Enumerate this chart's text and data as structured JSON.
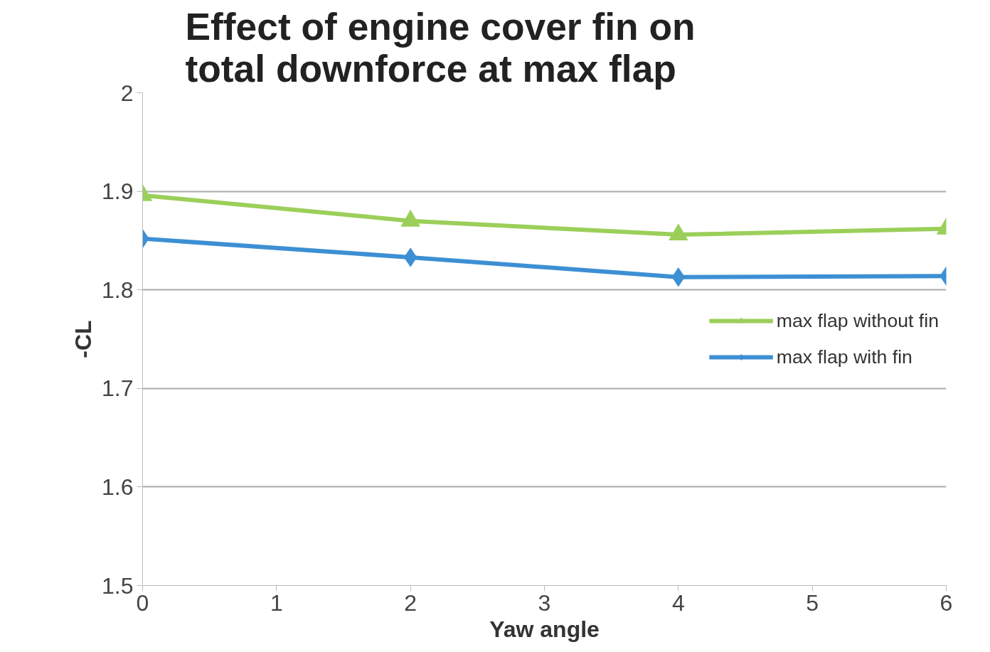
{
  "chart_data": {
    "type": "line",
    "title": "Effect of engine cover fin on\ntotal downforce at max flap",
    "xlabel": "Yaw angle",
    "ylabel": "-CL",
    "x": [
      0,
      2,
      4,
      6
    ],
    "series": [
      {
        "name": "max flap without fin",
        "color": "#9bcf5a",
        "marker": "triangle",
        "values": [
          1.896,
          1.87,
          1.856,
          1.862
        ]
      },
      {
        "name": "max flap with fin",
        "color": "#3d8fd4",
        "marker": "diamond",
        "values": [
          1.852,
          1.833,
          1.813,
          1.814
        ]
      }
    ],
    "xlim": [
      0,
      6
    ],
    "xticks": [
      0,
      1,
      2,
      3,
      4,
      5,
      6
    ],
    "ylim": [
      1.5,
      2
    ],
    "yticks": [
      1.5,
      1.6,
      1.7,
      1.8,
      1.9,
      2
    ],
    "grid": "y",
    "legend": "right",
    "line_style": "solid"
  }
}
